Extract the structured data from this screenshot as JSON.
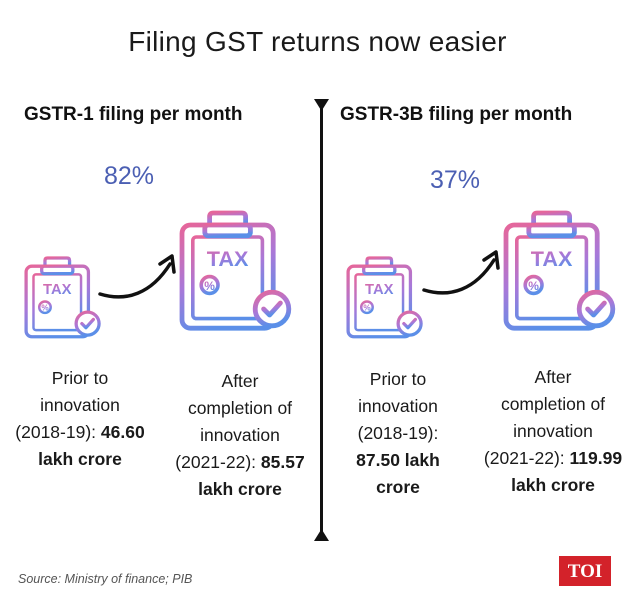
{
  "title": "Filing GST returns now easier",
  "left": {
    "heading": "GSTR-1 filing per month",
    "percent": "82%",
    "prior": {
      "lines": [
        "Prior to",
        "innovation"
      ],
      "period": "(2018-19):",
      "value": "46.60",
      "unit": "lakh crore"
    },
    "after": {
      "lines": [
        "After",
        "completion of",
        "innovation"
      ],
      "period": "(2021-22):",
      "value": "85.57",
      "unit": "lakh crore"
    }
  },
  "right": {
    "heading": "GSTR-3B filing per month",
    "percent": "37%",
    "prior": {
      "lines": [
        "Prior to",
        "innovation",
        "(2018-19):"
      ],
      "value": "87.50 lakh",
      "unit": "crore"
    },
    "after": {
      "lines": [
        "After",
        "completion of",
        "innovation"
      ],
      "period": "(2021-22):",
      "value": "119.99",
      "unit": "lakh crore"
    }
  },
  "icon_label": "TAX",
  "source": "Source: Ministry of finance; PIB",
  "logo": "TOI",
  "colors": {
    "percent": "#4b5fb3",
    "icon_gradient_top": "#e6669a",
    "icon_gradient_bottom": "#5b8fe8",
    "logo_bg": "#d3222a"
  }
}
